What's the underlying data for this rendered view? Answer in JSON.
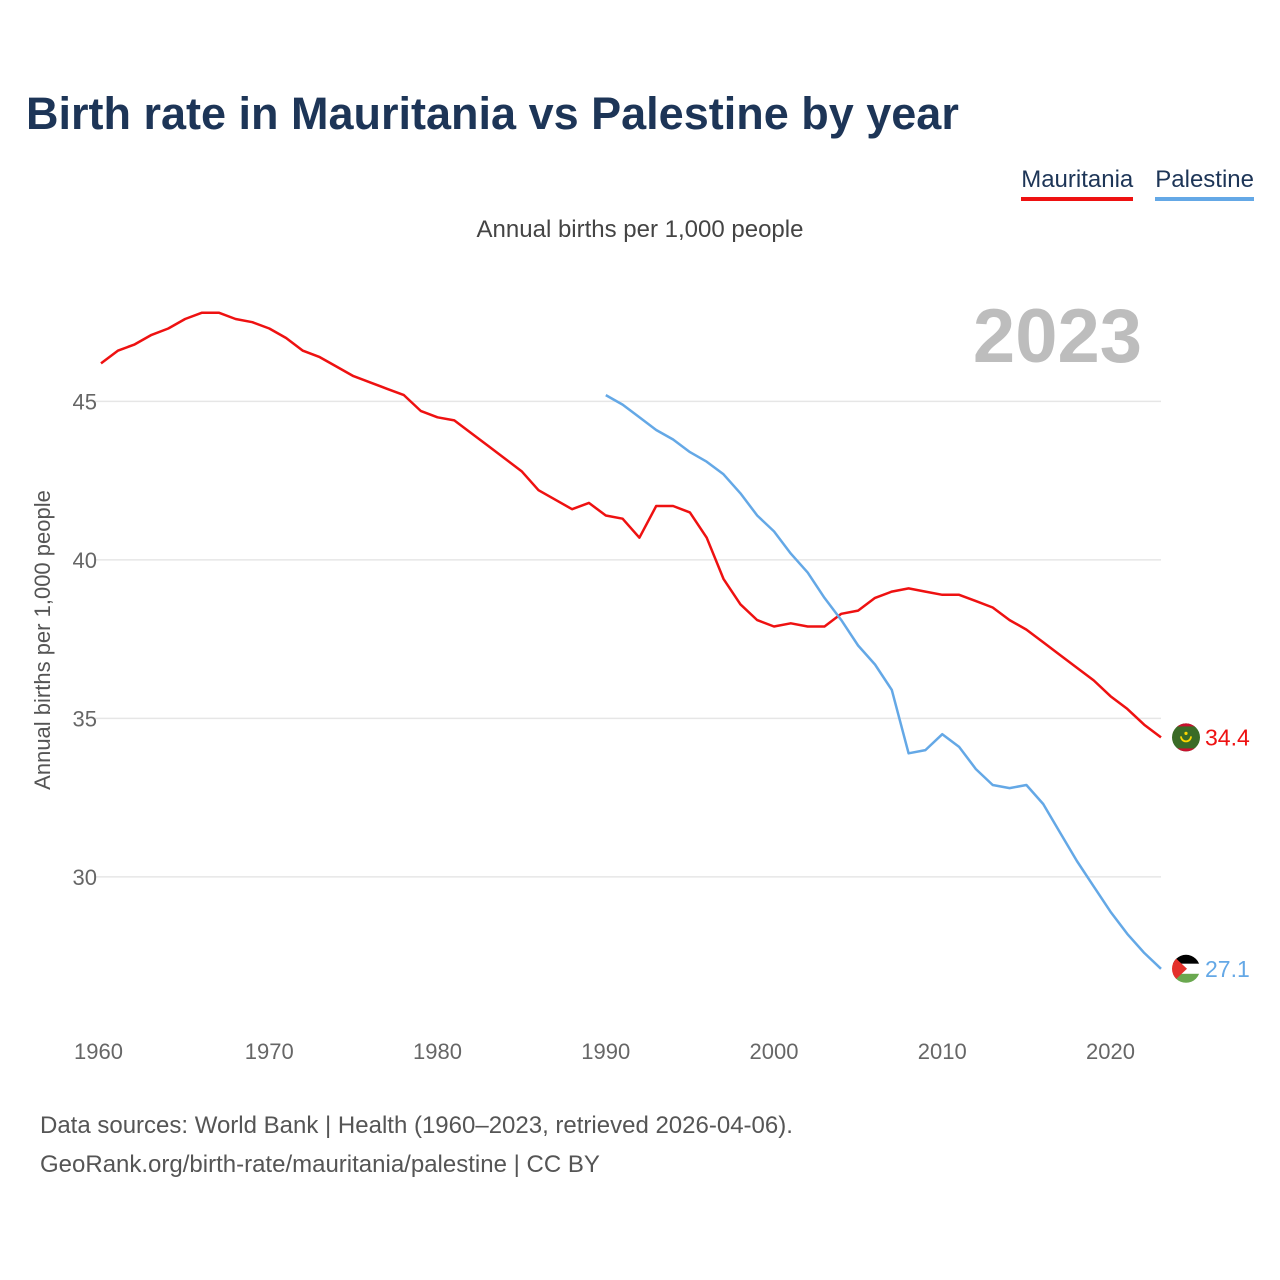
{
  "chart_data": {
    "type": "line",
    "title": "Birth rate in Mauritania vs Palestine by year",
    "subtitle": "Annual births per 1,000 people",
    "ylabel": "Annual births per 1,000 people",
    "xlabel": "",
    "year_display": "2023",
    "xlim": [
      1960,
      2023
    ],
    "ylim": [
      25.8,
      48.2
    ],
    "x_ticks": [
      1960,
      1970,
      1980,
      1990,
      2000,
      2010,
      2020
    ],
    "y_ticks": [
      30,
      35,
      40,
      45
    ],
    "legend_position": "top-right",
    "series": [
      {
        "name": "Mauritania",
        "color": "#ee1111",
        "end_label": "34.4",
        "flag_icon": "mauritania-flag-icon",
        "x": [
          1960,
          1961,
          1962,
          1963,
          1964,
          1965,
          1966,
          1967,
          1968,
          1969,
          1970,
          1971,
          1972,
          1973,
          1974,
          1975,
          1976,
          1977,
          1978,
          1979,
          1980,
          1981,
          1982,
          1983,
          1984,
          1985,
          1986,
          1987,
          1988,
          1989,
          1990,
          1991,
          1992,
          1993,
          1994,
          1995,
          1996,
          1997,
          1998,
          1999,
          2000,
          2001,
          2002,
          2003,
          2004,
          2005,
          2006,
          2007,
          2008,
          2009,
          2010,
          2011,
          2012,
          2013,
          2014,
          2015,
          2016,
          2017,
          2018,
          2019,
          2020,
          2021,
          2022,
          2023
        ],
        "values": [
          46.2,
          46.6,
          46.8,
          47.1,
          47.3,
          47.6,
          47.8,
          47.8,
          47.6,
          47.5,
          47.3,
          47.0,
          46.6,
          46.4,
          46.1,
          45.8,
          45.6,
          45.4,
          45.2,
          44.7,
          44.5,
          44.4,
          44.0,
          43.6,
          43.2,
          42.8,
          42.2,
          41.9,
          41.6,
          41.8,
          41.4,
          41.3,
          40.7,
          41.7,
          41.7,
          41.5,
          40.7,
          39.4,
          38.6,
          38.1,
          37.9,
          38.0,
          37.9,
          37.9,
          38.3,
          38.4,
          38.8,
          39.0,
          39.1,
          39.0,
          38.9,
          38.9,
          38.7,
          38.5,
          38.1,
          37.8,
          37.4,
          37.0,
          36.6,
          36.2,
          35.7,
          35.3,
          34.8,
          34.4
        ]
      },
      {
        "name": "Palestine",
        "color": "#64a8e6",
        "end_label": "27.1",
        "flag_icon": "palestine-flag-icon",
        "x": [
          1990,
          1991,
          1992,
          1993,
          1994,
          1995,
          1996,
          1997,
          1998,
          1999,
          2000,
          2001,
          2002,
          2003,
          2004,
          2005,
          2006,
          2007,
          2008,
          2009,
          2010,
          2011,
          2012,
          2013,
          2014,
          2015,
          2016,
          2017,
          2018,
          2019,
          2020,
          2021,
          2022,
          2023
        ],
        "values": [
          45.2,
          44.9,
          44.5,
          44.1,
          43.8,
          43.4,
          43.1,
          42.7,
          42.1,
          41.4,
          40.9,
          40.2,
          39.6,
          38.8,
          38.1,
          37.3,
          36.7,
          35.9,
          33.9,
          34.0,
          34.5,
          34.1,
          33.4,
          32.9,
          32.8,
          32.9,
          32.3,
          31.4,
          30.5,
          29.7,
          28.9,
          28.2,
          27.6,
          27.1
        ]
      }
    ]
  },
  "footer": {
    "line1": "Data sources: World Bank | Health (1960–2023, retrieved 2026-04-06).",
    "line2": "GeoRank.org/birth-rate/mauritania/palestine | CC BY"
  }
}
